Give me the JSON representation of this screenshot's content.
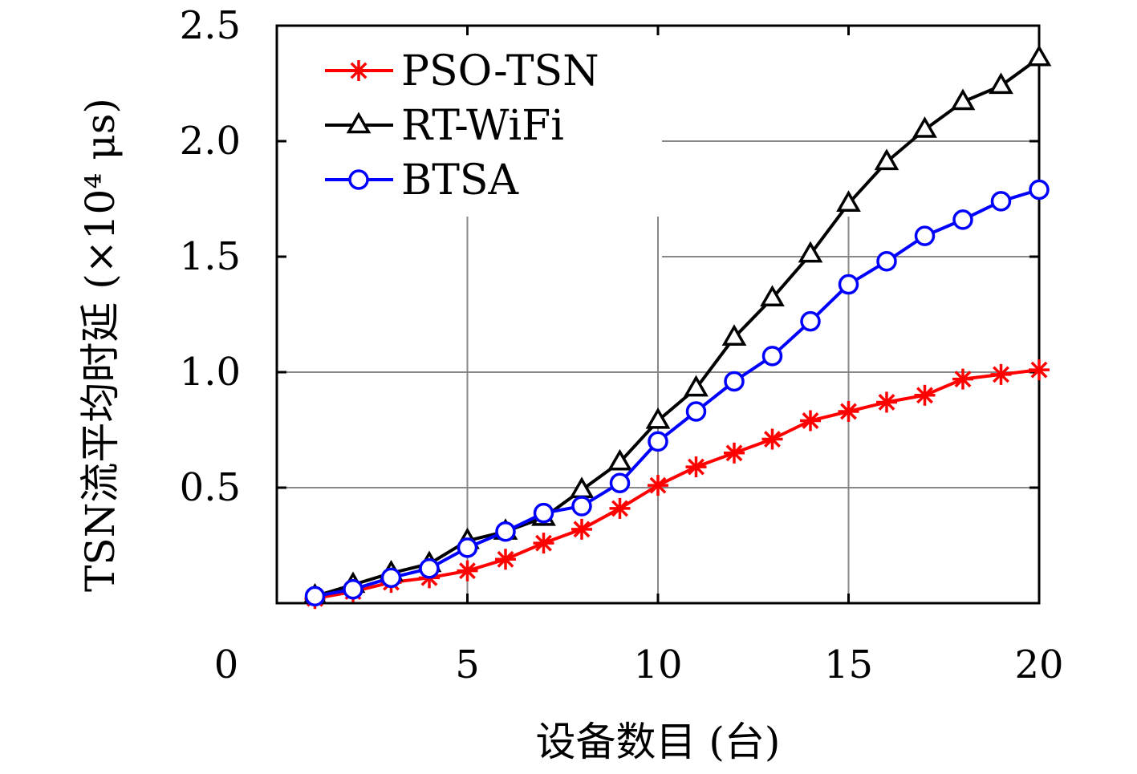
{
  "chart_data": {
    "type": "line",
    "title": "",
    "xlabel": "设备数目 (台)",
    "ylabel": "TSN流平均时延 (×10⁴ μs)",
    "xlim": [
      0,
      20
    ],
    "ylim": [
      0,
      2.5
    ],
    "x_ticks": [
      "0",
      "5",
      "10",
      "15",
      "20"
    ],
    "y_ticks": [
      "0.5",
      "1.0",
      "1.5",
      "2.0",
      "2.5"
    ],
    "grid": true,
    "legend_position": "top-left",
    "x": [
      1,
      2,
      3,
      4,
      5,
      6,
      7,
      8,
      9,
      10,
      11,
      12,
      13,
      14,
      15,
      16,
      17,
      18,
      19,
      20
    ],
    "series": [
      {
        "name": "PSO-TSN",
        "color": "#ff0000",
        "marker": "asterisk",
        "values": [
          0.02,
          0.05,
          0.09,
          0.11,
          0.14,
          0.19,
          0.26,
          0.32,
          0.41,
          0.51,
          0.59,
          0.65,
          0.71,
          0.79,
          0.83,
          0.87,
          0.9,
          0.97,
          0.99,
          1.01
        ]
      },
      {
        "name": "RT-WiFi",
        "color": "#000000",
        "marker": "triangle",
        "values": [
          0.03,
          0.08,
          0.13,
          0.17,
          0.27,
          0.31,
          0.37,
          0.49,
          0.61,
          0.79,
          0.93,
          1.15,
          1.32,
          1.51,
          1.73,
          1.91,
          2.05,
          2.17,
          2.24,
          2.36
        ]
      },
      {
        "name": "BTSA",
        "color": "#0000ff",
        "marker": "circle",
        "values": [
          0.03,
          0.06,
          0.11,
          0.15,
          0.24,
          0.31,
          0.39,
          0.42,
          0.52,
          0.7,
          0.83,
          0.96,
          1.07,
          1.22,
          1.38,
          1.48,
          1.59,
          1.66,
          1.74,
          1.79
        ]
      }
    ]
  }
}
